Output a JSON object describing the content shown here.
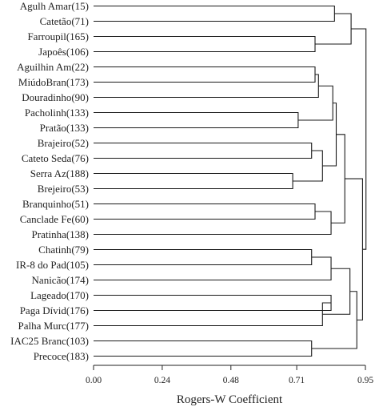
{
  "chart_data": {
    "type": "dendrogram",
    "title": "",
    "xlabel": "Rogers-W Coefficient",
    "xlim": [
      0,
      0.95
    ],
    "x_ticks": [
      {
        "value": 0.0,
        "label": "0.00"
      },
      {
        "value": 0.24,
        "label": "0.24"
      },
      {
        "value": 0.48,
        "label": "0.48"
      },
      {
        "value": 0.71,
        "label": "0.71"
      },
      {
        "value": 0.95,
        "label": "0.95"
      }
    ],
    "leaves": [
      "Agulh Amar(15)",
      "Catetão(71)",
      "Farroupil(165)",
      "Japoês(106)",
      "Aguilhin Am(22)",
      "MiúdoBran(173)",
      "Douradinho(90)",
      "Pacholinh(133)",
      "Pratão(133)",
      "Brajeiro(52)",
      "Cateto Seda(76)",
      "Serra Az(188)",
      "Brejeiro(53)",
      "Branquinho(51)",
      "Canclade Fe(60)",
      "Pratinha(138)",
      "Chatinh(79)",
      "IR-8 do Pad(105)",
      "Nanicão(174)",
      "Lageado(170)",
      "Paga Dívid(176)",
      "Palha Murc(177)",
      "IAC25 Branc(103)",
      "Precoce(183)"
    ],
    "merges": [
      {
        "id": "n1",
        "left": 0,
        "right": 1,
        "height": 0.842
      },
      {
        "id": "n2",
        "left": 2,
        "right": 3,
        "height": 0.774
      },
      {
        "id": "n3",
        "left": "n1",
        "right": "n2",
        "height": 0.9
      },
      {
        "id": "n4",
        "left": 4,
        "right": 5,
        "height": 0.774
      },
      {
        "id": "n5",
        "left": "n4",
        "right": 6,
        "height": 0.786
      },
      {
        "id": "n6",
        "left": 7,
        "right": 8,
        "height": 0.715
      },
      {
        "id": "n7",
        "left": "n5",
        "right": "n6",
        "height": 0.836
      },
      {
        "id": "n8",
        "left": 9,
        "right": 10,
        "height": 0.762
      },
      {
        "id": "n9",
        "left": 11,
        "right": 12,
        "height": 0.696
      },
      {
        "id": "n10",
        "left": "n8",
        "right": "n9",
        "height": 0.8
      },
      {
        "id": "n11",
        "left": "n7",
        "right": "n10",
        "height": 0.848
      },
      {
        "id": "n12",
        "left": 13,
        "right": 14,
        "height": 0.774
      },
      {
        "id": "n13",
        "left": "n12",
        "right": 15,
        "height": 0.83
      },
      {
        "id": "n14",
        "left": "n11",
        "right": "n13",
        "height": 0.878
      },
      {
        "id": "n15",
        "left": 16,
        "right": 17,
        "height": 0.762
      },
      {
        "id": "n16",
        "left": "n15",
        "right": 18,
        "height": 0.83
      },
      {
        "id": "n17",
        "left": 19,
        "right": 20,
        "height": 0.83
      },
      {
        "id": "n18",
        "left": "n17",
        "right": 21,
        "height": 0.8
      },
      {
        "id": "n19",
        "left": "n16",
        "right": "n18",
        "height": 0.896
      },
      {
        "id": "n20",
        "left": 22,
        "right": 23,
        "height": 0.762
      },
      {
        "id": "n21",
        "left": "n19",
        "right": "n20",
        "height": 0.92
      },
      {
        "id": "n22",
        "left": "n14",
        "right": "n21",
        "height": 0.94
      },
      {
        "id": "root",
        "left": "n3",
        "right": "n22",
        "height": 0.952
      }
    ]
  }
}
